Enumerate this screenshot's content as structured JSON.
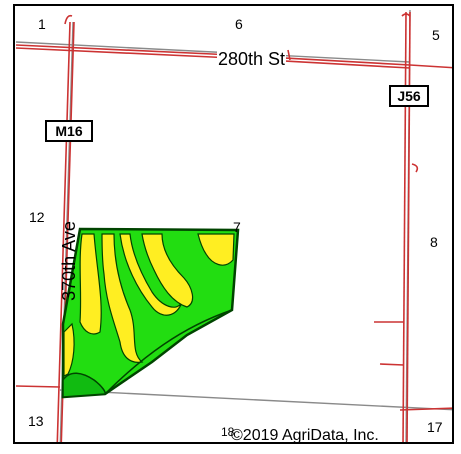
{
  "map": {
    "section_numbers": {
      "s1": "1",
      "s6": "6",
      "s5": "5",
      "s12": "12",
      "s7": "7",
      "s8": "8",
      "s13": "13",
      "s18": "18",
      "s17": "17"
    },
    "roads": {
      "east_west": "280th St",
      "north_south": "370th Ave"
    },
    "highway_shields": {
      "west": "M16",
      "east": "J56"
    },
    "copyright": "©2019 AgriData, Inc.",
    "colors": {
      "road": "#cc3333",
      "section_line": "#888888",
      "field_green": "#22dd11",
      "soil_yellow": "#ffee22",
      "soil_outline": "#004400"
    }
  }
}
